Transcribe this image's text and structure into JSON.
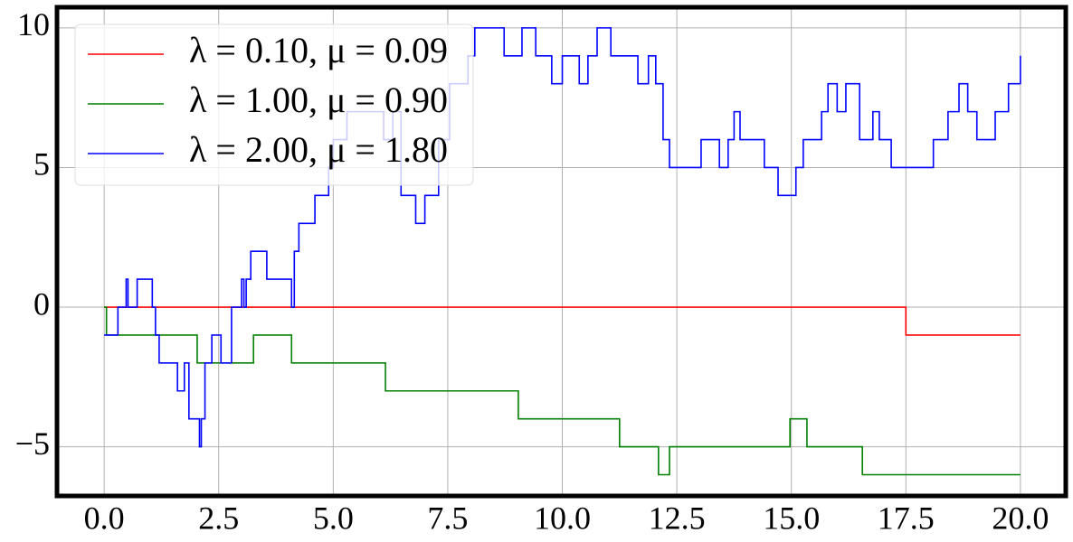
{
  "chart_data": {
    "type": "step",
    "xlim": [
      -1.03,
      20.99
    ],
    "ylim": [
      -6.76,
      10.74
    ],
    "xticks": [
      {
        "value": 0,
        "label": "0.0"
      },
      {
        "value": 2.5,
        "label": "2.5"
      },
      {
        "value": 5,
        "label": "5.0"
      },
      {
        "value": 7.5,
        "label": "7.5"
      },
      {
        "value": 10,
        "label": "10.0"
      },
      {
        "value": 12.5,
        "label": "12.5"
      },
      {
        "value": 15,
        "label": "15.0"
      },
      {
        "value": 17.5,
        "label": "17.5"
      },
      {
        "value": 20,
        "label": "20.0"
      }
    ],
    "yticks": [
      {
        "value": -5,
        "label": "−5"
      },
      0,
      5,
      10
    ],
    "grid": true,
    "legend": "upper-left",
    "series": [
      {
        "name": "λ = 0.10, μ = 0.09",
        "color": "#ff0000",
        "x": [
          0,
          17.5,
          20.0
        ],
        "values": [
          0,
          -1,
          -1
        ]
      },
      {
        "name": "λ = 1.00, μ = 0.90",
        "color": "#008000",
        "x": [
          0,
          0.05,
          2.03,
          3.26,
          4.09,
          6.14,
          9.04,
          11.25,
          12.1,
          12.34,
          14.97,
          15.34,
          16.55,
          20.0
        ],
        "values": [
          0,
          -1,
          -2,
          -1,
          -2,
          -3,
          -4,
          -5,
          -6,
          -5,
          -4,
          -5,
          -6,
          -6
        ]
      },
      {
        "name": "λ = 2.00, μ = 1.80",
        "color": "#0000ff",
        "x": [
          0,
          0.3,
          0.48,
          0.52,
          0.72,
          1.05,
          1.12,
          1.2,
          1.6,
          1.75,
          1.85,
          2.08,
          2.12,
          2.2,
          2.35,
          2.55,
          2.78,
          3.0,
          3.05,
          3.1,
          3.2,
          3.55,
          4.09,
          4.15,
          4.25,
          4.6,
          4.9,
          5.0,
          5.3,
          6.1,
          6.3,
          6.48,
          6.8,
          7.0,
          7.3,
          7.54,
          7.94,
          8.09,
          8.73,
          9.12,
          9.42,
          9.77,
          10.0,
          10.37,
          10.56,
          10.76,
          11.06,
          11.65,
          11.88,
          12.04,
          12.2,
          12.34,
          13.03,
          13.43,
          13.62,
          13.75,
          13.88,
          14.41,
          14.71,
          15.1,
          15.26,
          15.66,
          15.8,
          16.0,
          16.19,
          16.49,
          16.78,
          16.92,
          17.18,
          18.1,
          18.42,
          18.66,
          18.85,
          19.05,
          19.45,
          19.74,
          20.0
        ],
        "values": [
          -1,
          0,
          1,
          0,
          1,
          0,
          -1,
          -2,
          -3,
          -2,
          -4,
          -5,
          -4,
          -2,
          -1,
          -2,
          0,
          1,
          0,
          1,
          2,
          1,
          0,
          2,
          3,
          4,
          5,
          6,
          7,
          6,
          7,
          4,
          3,
          4,
          6,
          8,
          9,
          10,
          9,
          10,
          9,
          8,
          9,
          8,
          9,
          10,
          9,
          8,
          9,
          8,
          6,
          5,
          6,
          5,
          6,
          7,
          6,
          5,
          4,
          5,
          6,
          7,
          8,
          7,
          8,
          6,
          7,
          6,
          5,
          6,
          7,
          8,
          7,
          6,
          7,
          8,
          9
        ]
      }
    ]
  }
}
